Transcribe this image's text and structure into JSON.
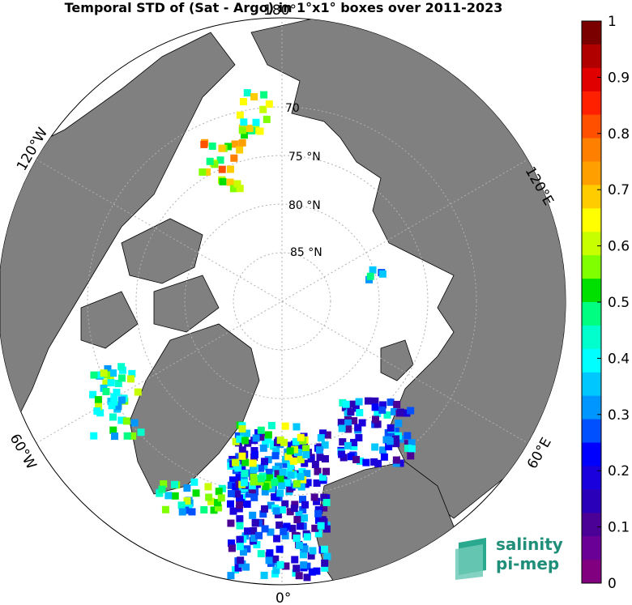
{
  "title": "Temporal STD of (Sat - Argo) in 1°x1° boxes over 2011-2023",
  "map": {
    "projection": "north polar stereographic",
    "latitude_labels": [
      "70",
      "75 °N",
      "80 °N",
      "85 °N"
    ],
    "longitude_labels": {
      "top": "180°",
      "left": "120°W",
      "right": "120°E",
      "lower_left": "60°W",
      "lower_right": "60°E",
      "bottom": "0°"
    },
    "colors": {
      "land": "#808080",
      "ocean": "#ffffff",
      "grid": "#b0b0b0"
    }
  },
  "colorbar": {
    "min": 0,
    "max": 1,
    "tick_labels": [
      "1",
      "0.9",
      "0.8",
      "0.7",
      "0.6",
      "0.5",
      "0.4",
      "0.3",
      "0.2",
      "0.1",
      "0"
    ],
    "colors": [
      "#7a0000",
      "#b00000",
      "#e00000",
      "#ff2000",
      "#ff5000",
      "#ff8000",
      "#ffa000",
      "#ffcc00",
      "#ffff00",
      "#c8ff00",
      "#80ff00",
      "#00e000",
      "#00ff80",
      "#00ffcc",
      "#00ffff",
      "#00c8ff",
      "#0096ff",
      "#0050ff",
      "#0000ff",
      "#1a00dc",
      "#2a00b8",
      "#4b0096",
      "#6a0096",
      "#800080"
    ]
  },
  "logo": {
    "line1": "salinity",
    "line2": "pi-mep"
  }
}
